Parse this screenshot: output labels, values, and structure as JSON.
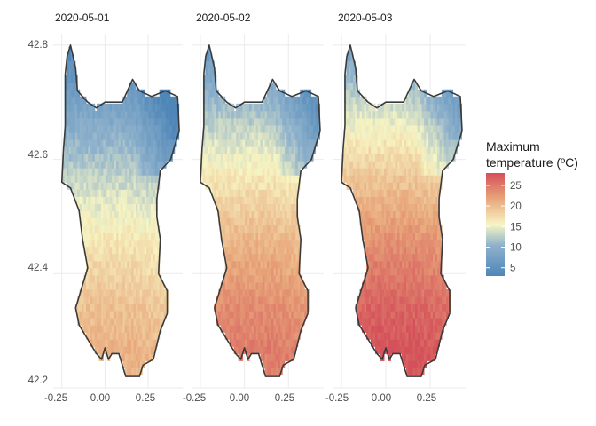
{
  "chart_data": {
    "type": "heatmap",
    "title": "",
    "xlabel": "",
    "ylabel": "",
    "facets": [
      "2020-05-01",
      "2020-05-02",
      "2020-05-03"
    ],
    "x_ticks": [
      "-0.25",
      "0.00",
      "0.25"
    ],
    "x_tick_values": [
      -0.25,
      0.0,
      0.25
    ],
    "y_ticks": [
      "42.2",
      "42.4",
      "42.6",
      "42.8"
    ],
    "y_tick_values": [
      42.2,
      42.4,
      42.6,
      42.8
    ],
    "xlim": [
      -0.3,
      0.45
    ],
    "ylim": [
      42.2,
      42.82
    ],
    "grid": true,
    "legend": {
      "title_line1": "Maximum",
      "title_line2": "temperature (ºC)",
      "position": "right",
      "breaks": [
        5,
        10,
        15,
        20,
        25
      ],
      "labels": [
        "5",
        "10",
        "15",
        "20",
        "25"
      ],
      "range": [
        3,
        28
      ],
      "palette": [
        "#4f86b8",
        "#8fb2cc",
        "#f7f5c3",
        "#e8a67a",
        "#d4505a"
      ]
    },
    "region_outline": [
      [
        -0.2,
        42.8
      ],
      [
        -0.17,
        42.76
      ],
      [
        -0.16,
        42.72
      ],
      [
        -0.1,
        42.7
      ],
      [
        -0.05,
        42.69
      ],
      [
        0.0,
        42.7
      ],
      [
        0.1,
        42.7
      ],
      [
        0.16,
        42.74
      ],
      [
        0.2,
        42.72
      ],
      [
        0.27,
        42.71
      ],
      [
        0.35,
        42.72
      ],
      [
        0.42,
        42.71
      ],
      [
        0.43,
        42.65
      ],
      [
        0.38,
        42.6
      ],
      [
        0.32,
        42.58
      ],
      [
        0.3,
        42.53
      ],
      [
        0.3,
        42.5
      ],
      [
        0.32,
        42.46
      ],
      [
        0.31,
        42.4
      ],
      [
        0.36,
        42.37
      ],
      [
        0.36,
        42.33
      ],
      [
        0.32,
        42.3
      ],
      [
        0.28,
        42.25
      ],
      [
        0.22,
        42.24
      ],
      [
        0.2,
        42.22
      ],
      [
        0.12,
        42.22
      ],
      [
        0.08,
        42.26
      ],
      [
        0.04,
        42.26
      ],
      [
        0.02,
        42.25
      ],
      [
        0.0,
        42.27
      ],
      [
        -0.02,
        42.25
      ],
      [
        -0.05,
        42.26
      ],
      [
        -0.15,
        42.31
      ],
      [
        -0.17,
        42.34
      ],
      [
        -0.1,
        42.41
      ],
      [
        -0.13,
        42.46
      ],
      [
        -0.15,
        42.51
      ],
      [
        -0.2,
        42.55
      ],
      [
        -0.25,
        42.56
      ],
      [
        -0.24,
        42.62
      ],
      [
        -0.23,
        42.66
      ],
      [
        -0.23,
        42.7
      ],
      [
        -0.23,
        42.75
      ],
      [
        -0.22,
        42.78
      ]
    ],
    "series": [
      {
        "date": "2020-05-01",
        "min_temp": 3,
        "max_temp": 21
      },
      {
        "date": "2020-05-02",
        "min_temp": 6,
        "max_temp": 25
      },
      {
        "date": "2020-05-03",
        "min_temp": 8,
        "max_temp": 28
      }
    ]
  }
}
